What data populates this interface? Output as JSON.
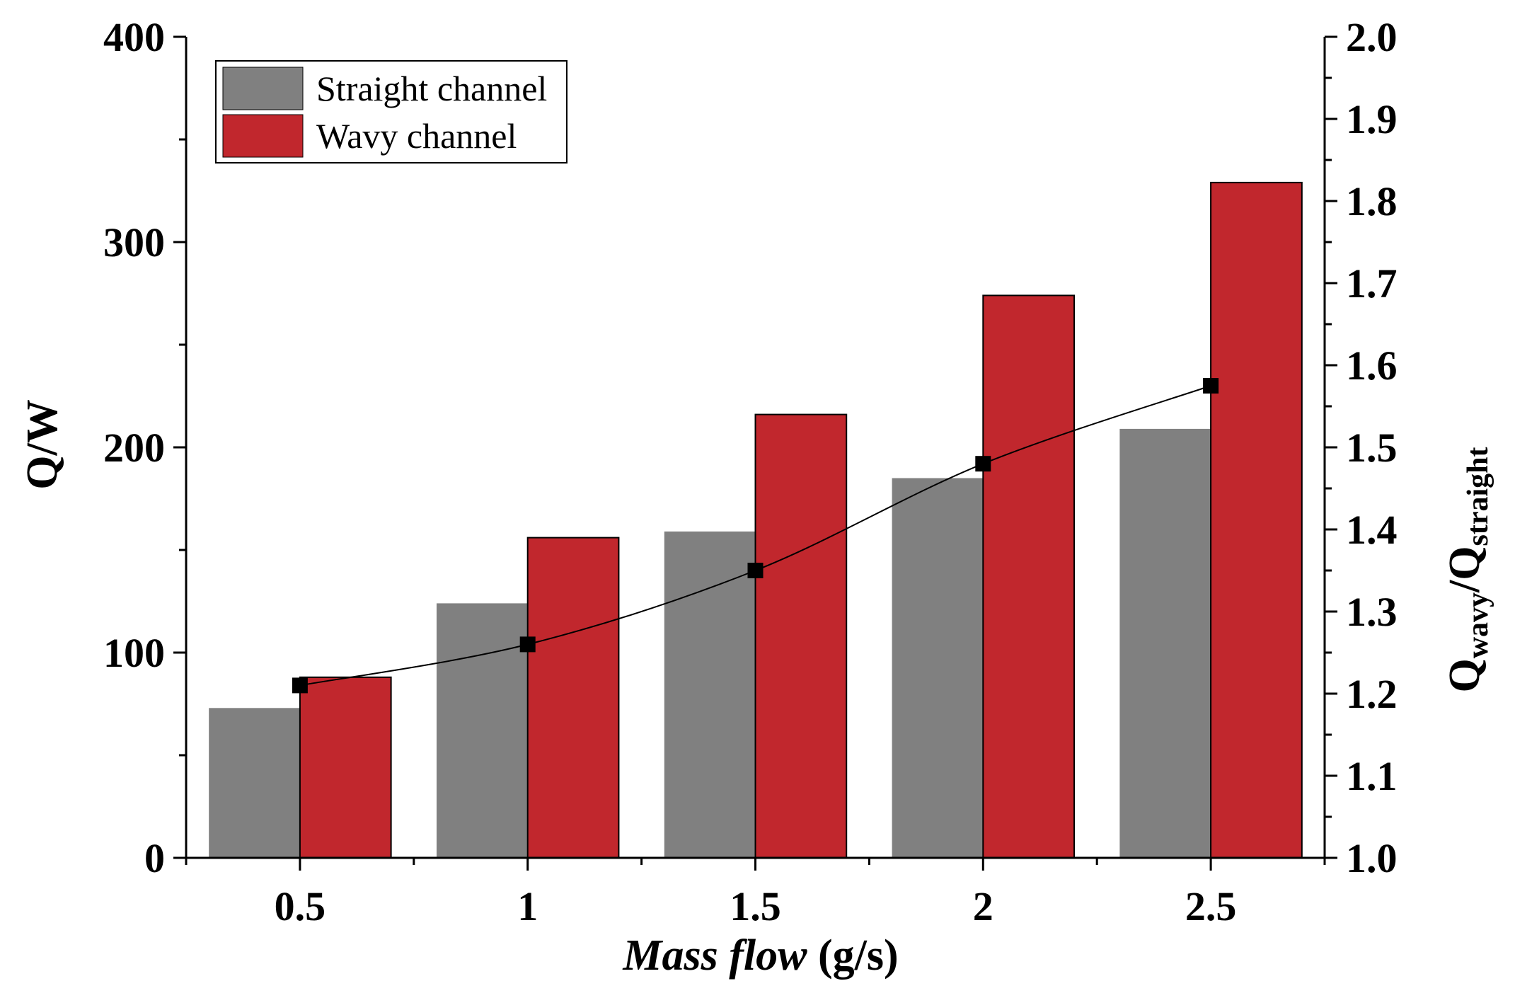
{
  "chart_data": {
    "type": "bar",
    "title": "",
    "xlabel": {
      "italic_part": "Mass flow",
      "plain_part": " (g/s)"
    },
    "ylabel": "Q/W",
    "y2label": {
      "base1": "Q",
      "sub1": "wavy",
      "mid": "/Q",
      "sub2": "straight"
    },
    "categories": [
      "0.5",
      "1",
      "1.5",
      "2",
      "2.5"
    ],
    "x_values": [
      0.5,
      1,
      1.5,
      2,
      2.5
    ],
    "xlim": [
      0.25,
      2.75
    ],
    "ylim": [
      0,
      400
    ],
    "y2lim": [
      1.0,
      2.0
    ],
    "y_ticks": [
      "0",
      "100",
      "200",
      "300",
      "400"
    ],
    "y2_ticks": [
      "1.0",
      "1.1",
      "1.2",
      "1.3",
      "1.4",
      "1.5",
      "1.6",
      "1.7",
      "1.8",
      "1.9",
      "2.0"
    ],
    "grid": false,
    "legend_position": "top-left",
    "series": [
      {
        "name": "Straight channel",
        "axis": "left",
        "kind": "bar",
        "color": "#808080",
        "values": [
          73,
          124,
          159,
          185,
          209
        ]
      },
      {
        "name": "Wavy channel",
        "axis": "left",
        "kind": "bar",
        "color": "#c1272d",
        "values": [
          88,
          156,
          216,
          274,
          329
        ]
      },
      {
        "name": "Qwavy/Qstraight",
        "axis": "right",
        "kind": "line",
        "color": "#000000",
        "values": [
          1.21,
          1.26,
          1.35,
          1.48,
          1.575
        ]
      }
    ]
  }
}
